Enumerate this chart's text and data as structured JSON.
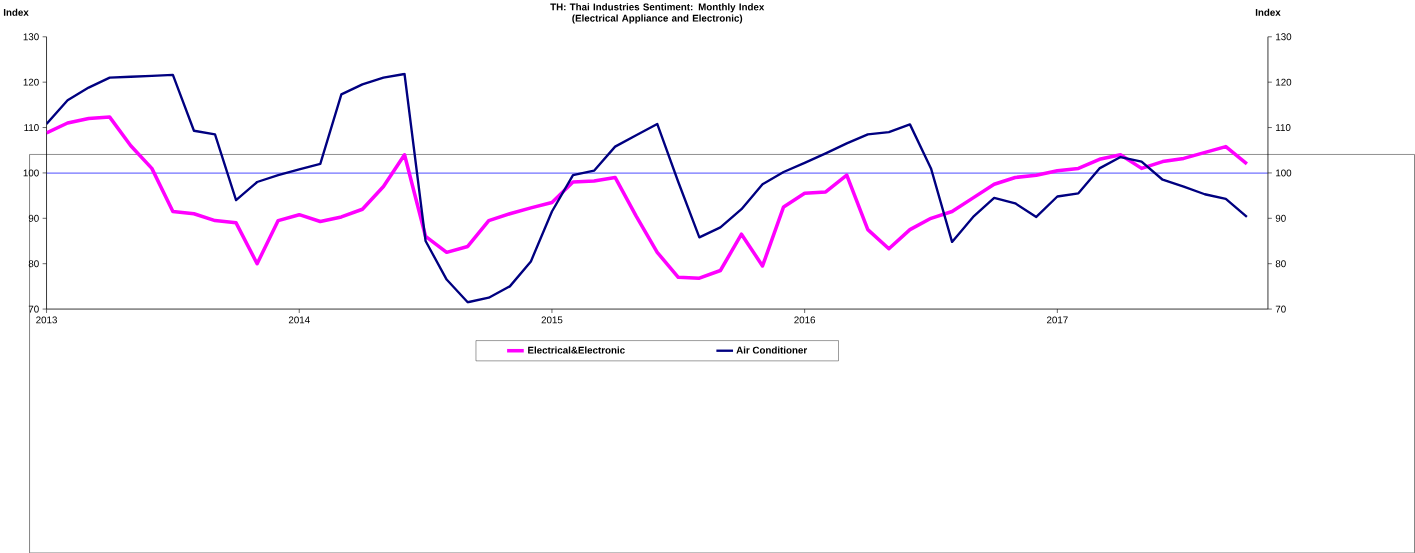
{
  "chart_data": {
    "type": "line",
    "title": "TH: Thai Industries Sentiment: Monthly Index\n(Electrical Appliance and Electronic)",
    "ylabel": "Index",
    "y2label": "Index",
    "x": [
      "2013-01",
      "2013-02",
      "2013-03",
      "2013-04",
      "2013-05",
      "2013-06",
      "2013-07",
      "2013-08",
      "2013-09",
      "2013-10",
      "2013-11",
      "2013-12",
      "2014-01",
      "2014-02",
      "2014-03",
      "2014-04",
      "2014-05",
      "2014-06",
      "2014-07",
      "2014-08",
      "2014-09",
      "2014-10",
      "2014-11",
      "2014-12",
      "2015-01",
      "2015-02",
      "2015-03",
      "2015-04",
      "2015-05",
      "2015-06",
      "2015-07",
      "2015-08",
      "2015-09",
      "2015-10",
      "2015-11",
      "2015-12",
      "2016-01",
      "2016-02",
      "2016-03",
      "2016-04",
      "2016-05",
      "2016-06",
      "2016-07",
      "2016-08",
      "2016-09",
      "2016-10",
      "2016-11",
      "2016-12",
      "2017-01",
      "2017-02",
      "2017-03",
      "2017-04",
      "2017-05",
      "2017-06",
      "2017-07",
      "2017-08",
      "2017-09",
      "2017-10"
    ],
    "series": [
      {
        "name": "Electrical&Electronic",
        "color": "#ff00ff",
        "values": [
          108.8,
          111,
          112,
          112.3,
          106,
          101,
          91.5,
          91,
          89.5,
          89,
          80,
          89.5,
          90.8,
          89.3,
          90.3,
          92,
          97,
          104,
          86,
          82.5,
          83.8,
          89.5,
          91,
          92.3,
          93.5,
          98,
          98.2,
          99,
          90.5,
          82.5,
          77,
          76.8,
          78.5,
          86.5,
          79.5,
          92.5,
          95.5,
          95.8,
          99.5,
          87.5,
          83.3,
          87.5,
          90,
          91.5,
          94.5,
          97.5,
          99,
          99.5,
          100.5,
          101,
          103,
          104,
          101,
          102.5,
          103.2,
          104.5,
          105.8,
          102
        ]
      },
      {
        "name": "Air Conditioner",
        "color": "#000080",
        "values": [
          110.8,
          116,
          118.8,
          121,
          121.2,
          121.4,
          121.6,
          109.3,
          108.5,
          94,
          98,
          99.5,
          100.8,
          102,
          117.3,
          119.5,
          121,
          121.8,
          85,
          76.5,
          71.5,
          72.5,
          75,
          80.5,
          91.5,
          99.5,
          100.5,
          105.8,
          108.3,
          110.8,
          98,
          85.8,
          88,
          92,
          97.5,
          100.2,
          102.2,
          104.3,
          106.5,
          108.5,
          109,
          110.7,
          101,
          84.8,
          90.3,
          94.5,
          93.3,
          90.3,
          94.8,
          95.5,
          101,
          103.5,
          102.5,
          98.5,
          97,
          95.3,
          94.3,
          90.3
        ]
      }
    ],
    "xlim": [
      "2013-01",
      "2017-11"
    ],
    "xticks": [
      {
        "value": "2013-01",
        "label": "2013"
      },
      {
        "value": "2014-01",
        "label": "2014"
      },
      {
        "value": "2015-01",
        "label": "2015"
      },
      {
        "value": "2016-01",
        "label": "2016"
      },
      {
        "value": "2017-01",
        "label": "2017"
      }
    ],
    "ylim": [
      70,
      130
    ],
    "yticks": [
      70,
      80,
      90,
      100,
      110,
      120,
      130
    ],
    "y2lim": [
      70,
      130
    ],
    "y2ticks": [
      70,
      80,
      90,
      100,
      110,
      120,
      130
    ],
    "ref_lines": [
      {
        "axis": "y",
        "value": 100,
        "color": "#0000ff"
      }
    ],
    "grid": false,
    "legend": "bottom",
    "marker": "none",
    "line_style": "solid"
  }
}
